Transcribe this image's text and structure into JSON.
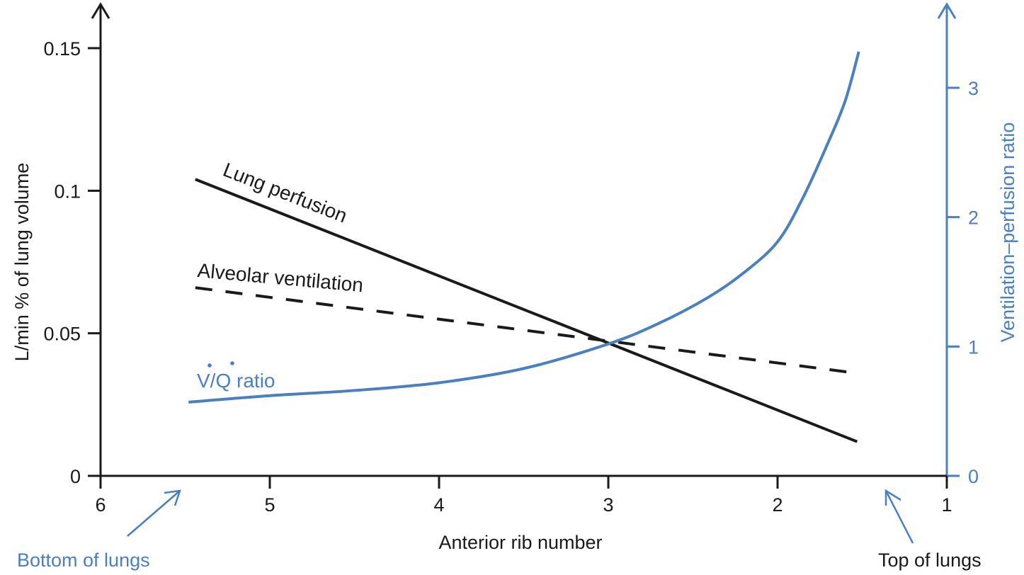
{
  "chart_data": {
    "type": "line",
    "title": "",
    "xlabel": "Anterior rib number",
    "ylabel": "L/min % of lung volume",
    "y2label": "Ventilation–perfusion ratio",
    "xlim": [
      6,
      1
    ],
    "ylim": [
      0,
      0.15
    ],
    "y2lim": [
      0,
      3
    ],
    "x_ticks": [
      6,
      5,
      4,
      3,
      2,
      1
    ],
    "x_tick_labels": [
      "6",
      "5",
      "4",
      "3",
      "2",
      "1"
    ],
    "y_ticks": [
      0,
      0.05,
      0.1,
      0.15
    ],
    "y_tick_labels": [
      "0",
      "0.05",
      "0.1",
      "0.15"
    ],
    "y2_ticks": [
      0,
      1,
      2,
      3
    ],
    "y2_tick_labels": [
      "0",
      "1",
      "2",
      "3"
    ],
    "grid": false,
    "colors": {
      "primary": "#1a1a1a",
      "accent": "#4a7fc1"
    },
    "series": [
      {
        "name": "Lung perfusion",
        "axis": "left",
        "style": "solid",
        "color": "#1a1a1a",
        "x": [
          5.44,
          1.53
        ],
        "y": [
          0.104,
          0.012
        ]
      },
      {
        "name": "Alveolar ventilation",
        "axis": "left",
        "style": "dashed",
        "color": "#1a1a1a",
        "x": [
          5.44,
          1.53
        ],
        "y": [
          0.066,
          0.036
        ]
      },
      {
        "name": "V/Q ratio",
        "axis": "right",
        "style": "solid",
        "color": "#4a7fc1",
        "x": [
          5.48,
          5.0,
          4.5,
          4.0,
          3.5,
          3.0,
          2.7,
          2.41,
          2.2,
          2.0,
          1.85,
          1.7,
          1.6,
          1.52
        ],
        "y": [
          0.57,
          0.62,
          0.66,
          0.72,
          0.83,
          1.02,
          1.18,
          1.38,
          1.57,
          1.81,
          2.15,
          2.58,
          2.9,
          3.28
        ]
      }
    ],
    "annotations": [
      {
        "text": "Lung perfusion",
        "near_series": "Lung perfusion"
      },
      {
        "text": "Alveolar ventilation",
        "near_series": "Alveolar ventilation"
      },
      {
        "text": "V/Q ratio",
        "near_series": "V/Q ratio"
      },
      {
        "text": "Bottom of lungs",
        "points_to_x": 5.5
      },
      {
        "text": "Top of lungs",
        "points_to_x": 1.4
      }
    ]
  },
  "labels": {
    "lung_perfusion": "Lung perfusion",
    "alveolar_ventilation": "Alveolar ventilation",
    "vq_ratio": "V/Q ratio",
    "vq_ratio_suffix": " ratio",
    "bottom_of_lungs": "Bottom of lungs",
    "top_of_lungs": "Top of lungs"
  }
}
